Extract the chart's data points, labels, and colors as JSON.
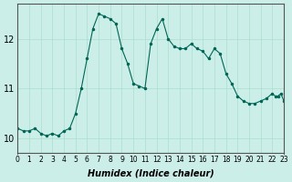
{
  "title": "",
  "xlabel": "Humidex (Indice chaleur)",
  "ylabel": "",
  "bg_color": "#cceee8",
  "grid_color": "#aaddcc",
  "line_color": "#006655",
  "ylim": [
    9.7,
    12.7
  ],
  "xlim": [
    0,
    23
  ],
  "yticks": [
    10,
    11,
    12
  ],
  "xticks": [
    0,
    1,
    2,
    3,
    4,
    5,
    6,
    7,
    8,
    9,
    10,
    11,
    12,
    13,
    14,
    15,
    16,
    17,
    18,
    19,
    20,
    21,
    22,
    23
  ],
  "hours": [
    0,
    0.5,
    1,
    1.5,
    2,
    2.5,
    3,
    3.5,
    4,
    4.5,
    5,
    5.5,
    6,
    6.5,
    7,
    7.5,
    8,
    8.5,
    9,
    9.5,
    10,
    10.5,
    11,
    11.5,
    12,
    12.5,
    13,
    13.5,
    14,
    14.5,
    15,
    15.5,
    16,
    16.5,
    17,
    17.5,
    18,
    18.5,
    19,
    19.5,
    20,
    20.5,
    21,
    21.5,
    22,
    22.25,
    22.5,
    22.75,
    23
  ],
  "values": [
    10.2,
    10.15,
    10.15,
    10.2,
    10.1,
    10.05,
    10.1,
    10.05,
    10.15,
    10.2,
    10.5,
    11.0,
    11.6,
    12.2,
    12.5,
    12.45,
    12.4,
    12.3,
    11.8,
    11.5,
    11.1,
    11.05,
    11.0,
    11.9,
    12.2,
    12.4,
    12.0,
    11.85,
    11.8,
    11.8,
    11.9,
    11.8,
    11.75,
    11.6,
    11.8,
    11.7,
    11.3,
    11.1,
    10.85,
    10.75,
    10.7,
    10.7,
    10.75,
    10.8,
    10.9,
    10.85,
    10.85,
    10.9,
    10.75
  ]
}
